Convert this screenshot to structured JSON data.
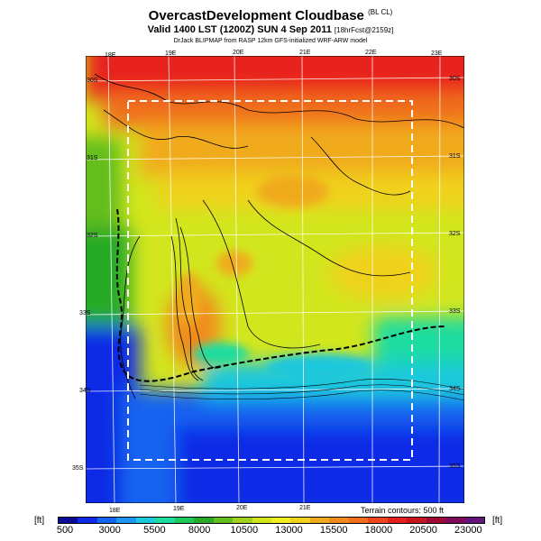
{
  "title": {
    "main": "OvercastDevelopment Cloudbase",
    "main_suffix": "(BL CL)",
    "valid": "Valid 1400 LST (1200Z) SUN 4 Sep 2011",
    "valid_suffix": "[18hrFcst@2159z]",
    "credit": "DrJack BLIPMAP from RASP 12km GFS-initialized WRF-ARW model"
  },
  "map": {
    "lat_labels": [
      "30S",
      "31S",
      "32S",
      "33S",
      "34S",
      "35S"
    ],
    "lat_labels_left": [
      "30S",
      "31S",
      "32S",
      "33S",
      "34S",
      "35S"
    ],
    "lon_labels_top": [
      "18E",
      "19E",
      "20E",
      "21E",
      "22E",
      "23E"
    ],
    "lon_labels_bottom": [
      "18E",
      "19E",
      "20E",
      "21E"
    ],
    "terrain_note": "Terrain contours: 500 ft"
  },
  "colorbar": {
    "unit_left": "[ft]",
    "unit_right": "[ft]",
    "labels": [
      "500",
      "3000",
      "5500",
      "8000",
      "10500",
      "13000",
      "15500",
      "18000",
      "20500",
      "23000"
    ],
    "colors": [
      "#0a0a96",
      "#0f2ae6",
      "#1464f0",
      "#1e96f0",
      "#1ec8dc",
      "#1edca0",
      "#1ec85a",
      "#28aa28",
      "#64be1e",
      "#a0d21e",
      "#d2e61e",
      "#f0f01e",
      "#f0d21e",
      "#f0aa1e",
      "#f08c1e",
      "#f06e1e",
      "#f0461e",
      "#e61e1e",
      "#c8141e",
      "#a00a32",
      "#820a5a",
      "#64147d"
    ]
  }
}
